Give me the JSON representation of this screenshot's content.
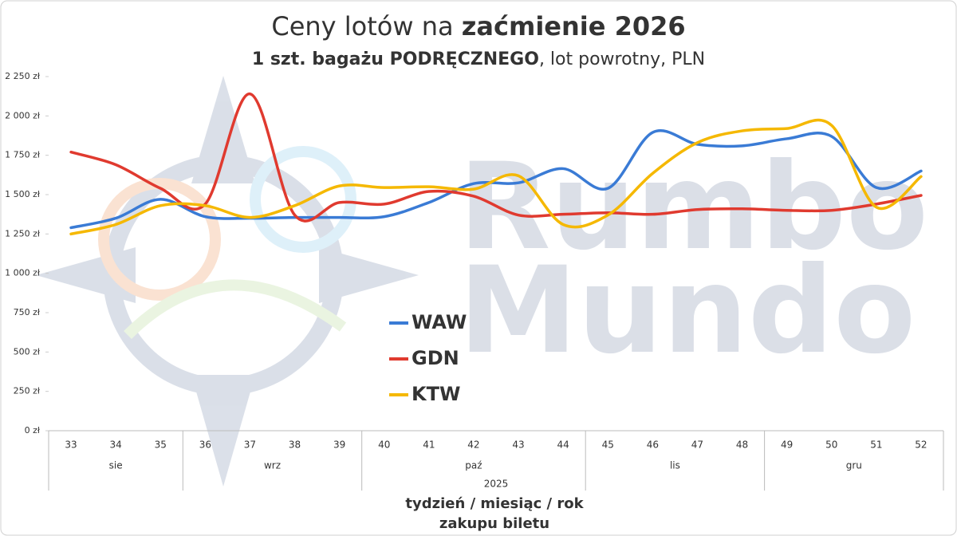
{
  "chart_data": {
    "type": "line",
    "title": [
      "Ceny lotów na",
      "zaćmienie 2026"
    ],
    "subtitle": [
      "1 szt. bagażu PODRĘCZNEGO",
      ", lot powrotny, PLN"
    ],
    "watermark": [
      "Rumbo",
      "Mundo"
    ],
    "categories": [
      "33",
      "34",
      "35",
      "36",
      "37",
      "38",
      "39",
      "40",
      "41",
      "42",
      "43",
      "44",
      "45",
      "46",
      "47",
      "48",
      "49",
      "50",
      "51",
      "52"
    ],
    "months": [
      "sie",
      "sie",
      "sie",
      "wrz",
      "wrz",
      "wrz",
      "wrz",
      "paź",
      "paź",
      "paź",
      "paź",
      "paź",
      "lis",
      "lis",
      "lis",
      "lis",
      "gru",
      "gru",
      "gru",
      "gru"
    ],
    "year": "2025",
    "x_label": [
      "tydzień / miesiąc / rok",
      "zakupu biletu"
    ],
    "ylim": [
      0,
      2250
    ],
    "yticks": [
      {
        "value": 0,
        "label": "0 zł"
      },
      {
        "value": 250,
        "label": "250 zł"
      },
      {
        "value": 500,
        "label": "500 zł"
      },
      {
        "value": 750,
        "label": "750 zł"
      },
      {
        "value": 1000,
        "label": "1 000 zł"
      },
      {
        "value": 1250,
        "label": "1 250 zł"
      },
      {
        "value": 1500,
        "label": "1 500 zł"
      },
      {
        "value": 1750,
        "label": "1 750 zł"
      },
      {
        "value": 2000,
        "label": "2 000 zł"
      },
      {
        "value": 2250,
        "label": "2 250 zł"
      }
    ],
    "series": [
      {
        "name": "WAW",
        "color": "#3a7bd5",
        "values": [
          1290,
          1350,
          1470,
          1360,
          1350,
          1355,
          1355,
          1360,
          1450,
          1570,
          1575,
          1665,
          1540,
          1895,
          1820,
          1810,
          1855,
          1870,
          1545,
          1650
        ]
      },
      {
        "name": "GDN",
        "color": "#e03a2f",
        "values": [
          1770,
          1690,
          1540,
          1440,
          2140,
          1370,
          1450,
          1440,
          1520,
          1490,
          1370,
          1375,
          1385,
          1375,
          1405,
          1410,
          1400,
          1400,
          1440,
          1495
        ]
      },
      {
        "name": "KTW",
        "color": "#f5b800",
        "values": [
          1250,
          1310,
          1430,
          1430,
          1355,
          1430,
          1555,
          1545,
          1550,
          1535,
          1620,
          1310,
          1370,
          1635,
          1830,
          1905,
          1920,
          1940,
          1420,
          1615
        ]
      }
    ]
  }
}
